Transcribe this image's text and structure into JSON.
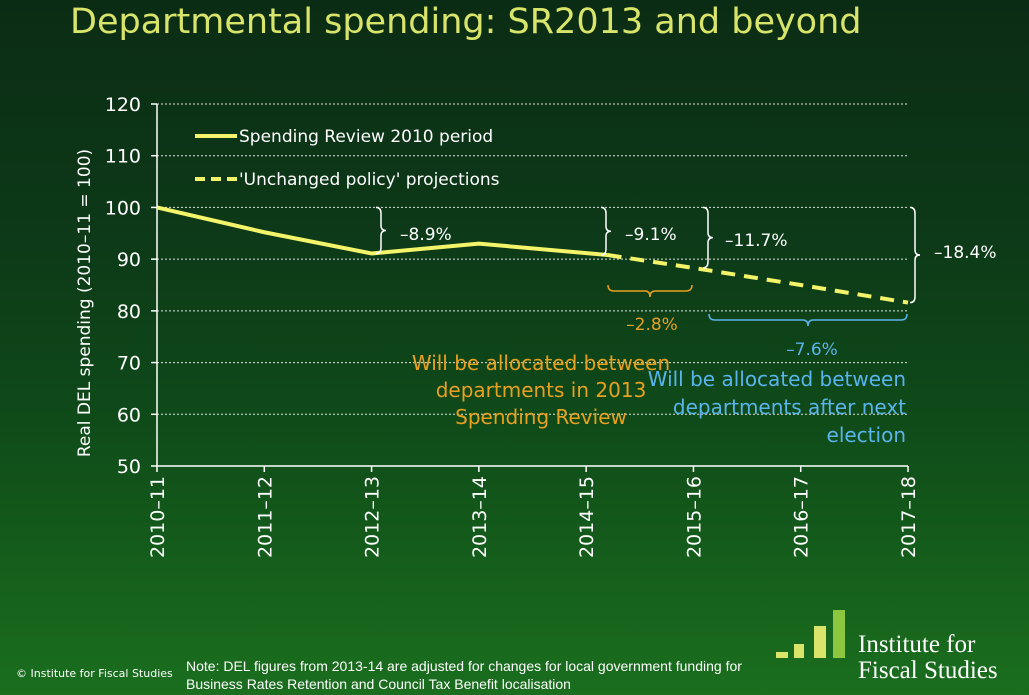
{
  "title": "Departmental spending: SR2013 and beyond",
  "colors": {
    "line": "#f4f46a",
    "axis_text": "#ffffff",
    "orange": "#e8a020",
    "blue": "#5ab4ec",
    "title": "#d8e46a",
    "logo_bar_light": "#d8e46a",
    "logo_bar_dark": "#8dc63f"
  },
  "chart_data": {
    "type": "line",
    "title": "",
    "xlabel": "",
    "ylabel": "Real DEL spending (2010–11 = 100)",
    "ylim": [
      50,
      120
    ],
    "yticks": [
      "50",
      "60",
      "70",
      "80",
      "90",
      "100",
      "110",
      "120"
    ],
    "categories": [
      "2010–11",
      "2011–12",
      "2012–13",
      "2013–14",
      "2014–15",
      "2015–16",
      "2016–17",
      "2017–18"
    ],
    "series": [
      {
        "name": "Spending Review 2010 period",
        "style": "solid",
        "x": [
          0,
          1,
          2,
          3,
          4.2
        ],
        "values": [
          100,
          95.2,
          91.1,
          93.0,
          90.8
        ]
      },
      {
        "name": "'Unchanged policy' projections",
        "style": "dashed",
        "x": [
          4.2,
          5,
          6,
          7
        ],
        "values": [
          90.8,
          88.3,
          85.0,
          81.6
        ]
      }
    ],
    "legend_position": "top-left",
    "annotations": {
      "change_sr2010": "–8.9%",
      "change_to_2015": "–9.1%",
      "change_to_2016": "–11.7%",
      "change_total": "–18.4%",
      "change_sr2013": "–2.8%",
      "change_next_election": "–7.6%",
      "sr2013_note": [
        "Will be allocated between",
        "departments in 2013",
        "Spending Review"
      ],
      "election_note": [
        "Will be allocated between",
        "departments after next",
        "election"
      ]
    }
  },
  "footer": {
    "copyright": "© Institute for Fiscal Studies",
    "note": "Note: DEL figures from 2013-14 are adjusted for changes for local government funding for Business Rates Retention and Council Tax Benefit localisation"
  },
  "logo": {
    "line1": "Institute for",
    "line2": "Fiscal Studies"
  }
}
